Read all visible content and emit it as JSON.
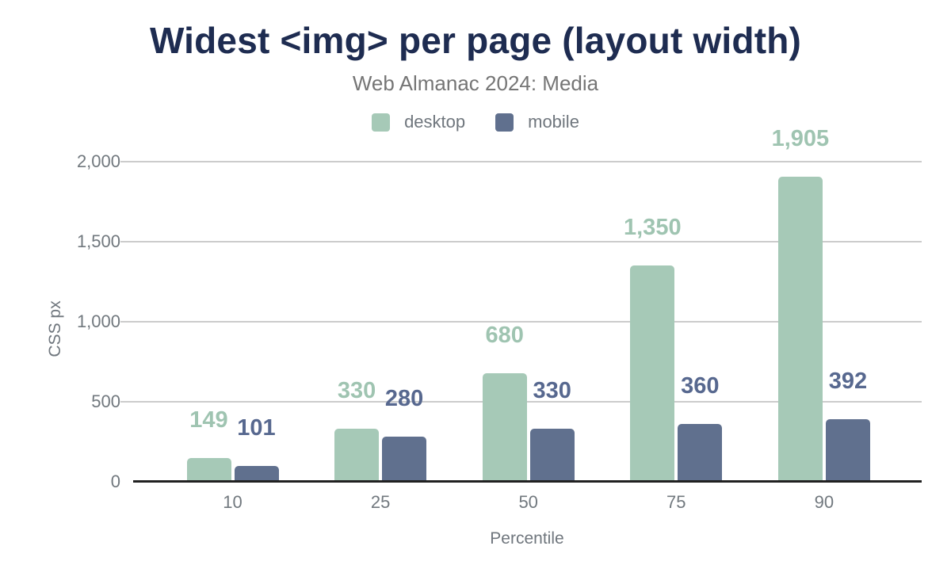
{
  "chart_data": {
    "type": "bar",
    "title": "Widest <img> per page (layout width)",
    "subtitle": "Web Almanac 2024: Media",
    "xlabel": "Percentile",
    "ylabel": "CSS px",
    "categories": [
      "10",
      "25",
      "50",
      "75",
      "90"
    ],
    "series": [
      {
        "name": "desktop",
        "color": "#a6c9b7",
        "label_color": "#9fc4b1",
        "values": [
          149,
          330,
          680,
          1350,
          1905
        ],
        "labels": [
          "149",
          "330",
          "680",
          "1,350",
          "1,905"
        ]
      },
      {
        "name": "mobile",
        "color": "#60708e",
        "label_color": "#57688f",
        "values": [
          101,
          280,
          330,
          360,
          392
        ],
        "labels": [
          "101",
          "280",
          "330",
          "360",
          "392"
        ]
      }
    ],
    "ylim": [
      0,
      2000
    ],
    "yticks": [
      {
        "value": 0,
        "label": "0"
      },
      {
        "value": 500,
        "label": "500"
      },
      {
        "value": 1000,
        "label": "1,000"
      },
      {
        "value": 1500,
        "label": "1,500"
      },
      {
        "value": 2000,
        "label": "2,000"
      }
    ],
    "grid": true,
    "legend_position": "top",
    "colors": {
      "title": "#1e2c51",
      "subtitle": "#757575",
      "tick_text": "#71787e",
      "gridline": "#cccccc",
      "axis_line": "#212121"
    }
  }
}
